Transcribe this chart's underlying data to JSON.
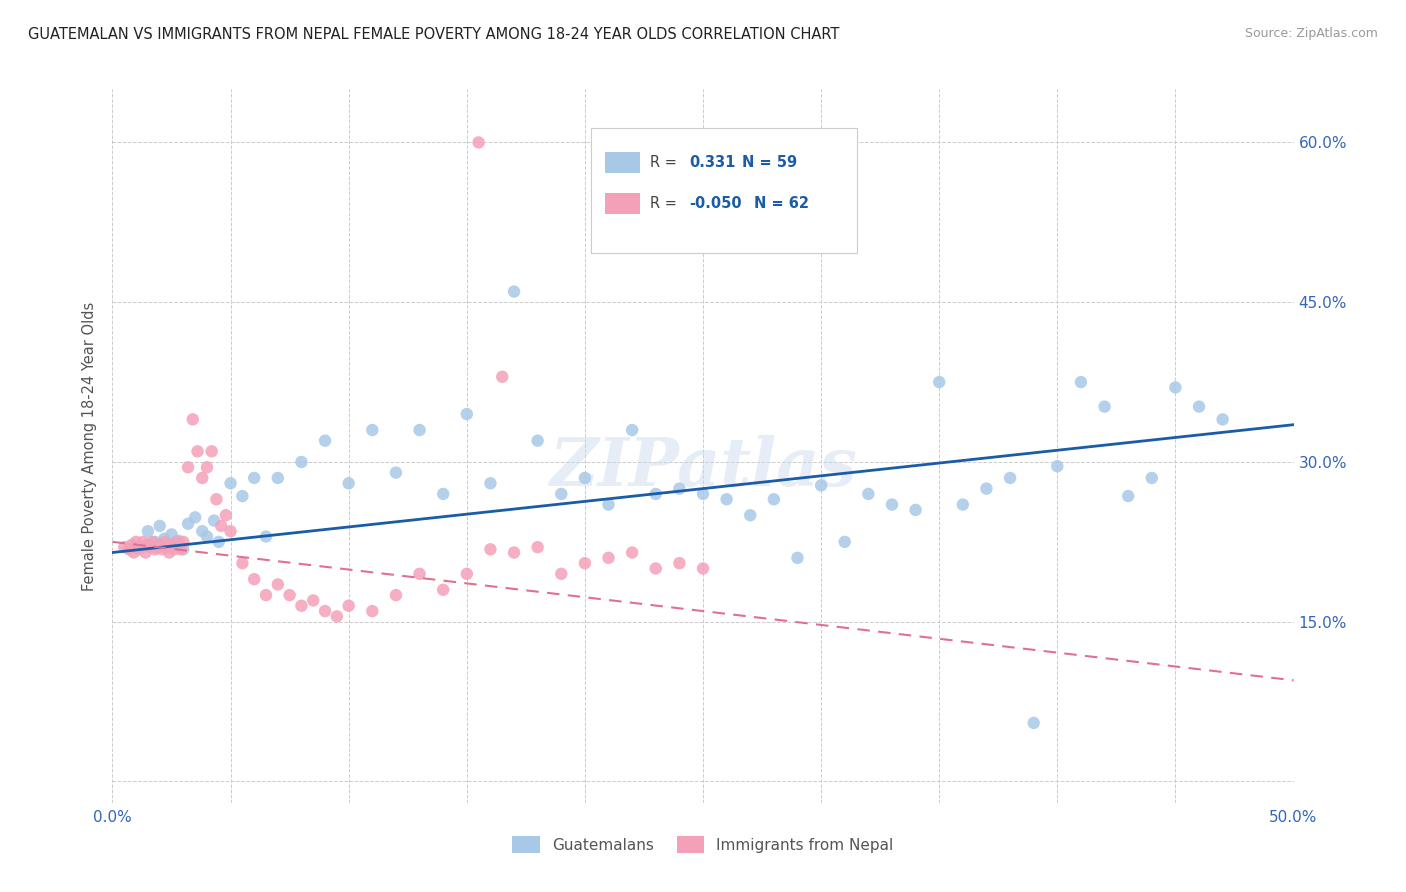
{
  "title": "GUATEMALAN VS IMMIGRANTS FROM NEPAL FEMALE POVERTY AMONG 18-24 YEAR OLDS CORRELATION CHART",
  "source": "Source: ZipAtlas.com",
  "ylabel": "Female Poverty Among 18-24 Year Olds",
  "xlim": [
    0.0,
    0.5
  ],
  "ylim": [
    -0.02,
    0.65
  ],
  "R_blue": 0.331,
  "N_blue": 59,
  "R_pink": -0.05,
  "N_pink": 62,
  "blue_color": "#a8c8e8",
  "pink_color": "#f4a0b8",
  "trend_blue_color": "#1a5ca8",
  "trend_pink_color": "#e07090",
  "watermark": "ZIPatlas",
  "legend_labels": [
    "Guatemalans",
    "Immigrants from Nepal"
  ],
  "blue_x": [
    0.01,
    0.015,
    0.018,
    0.02,
    0.022,
    0.025,
    0.028,
    0.03,
    0.032,
    0.035,
    0.038,
    0.04,
    0.043,
    0.045,
    0.05,
    0.055,
    0.06,
    0.065,
    0.07,
    0.08,
    0.09,
    0.1,
    0.11,
    0.12,
    0.13,
    0.14,
    0.15,
    0.16,
    0.17,
    0.18,
    0.19,
    0.2,
    0.21,
    0.22,
    0.23,
    0.24,
    0.25,
    0.26,
    0.27,
    0.28,
    0.29,
    0.3,
    0.31,
    0.32,
    0.33,
    0.34,
    0.35,
    0.36,
    0.37,
    0.38,
    0.39,
    0.4,
    0.41,
    0.42,
    0.43,
    0.44,
    0.45,
    0.46,
    0.47
  ],
  "blue_y": [
    0.22,
    0.235,
    0.225,
    0.24,
    0.228,
    0.232,
    0.226,
    0.218,
    0.242,
    0.248,
    0.235,
    0.23,
    0.245,
    0.225,
    0.28,
    0.268,
    0.285,
    0.23,
    0.285,
    0.3,
    0.32,
    0.28,
    0.33,
    0.29,
    0.33,
    0.27,
    0.345,
    0.28,
    0.46,
    0.32,
    0.27,
    0.285,
    0.26,
    0.33,
    0.27,
    0.275,
    0.27,
    0.265,
    0.25,
    0.265,
    0.21,
    0.278,
    0.225,
    0.27,
    0.26,
    0.255,
    0.375,
    0.26,
    0.275,
    0.285,
    0.055,
    0.296,
    0.375,
    0.352,
    0.268,
    0.285,
    0.37,
    0.352,
    0.34
  ],
  "pink_x": [
    0.005,
    0.007,
    0.008,
    0.009,
    0.01,
    0.011,
    0.012,
    0.013,
    0.014,
    0.015,
    0.016,
    0.017,
    0.018,
    0.019,
    0.02,
    0.021,
    0.022,
    0.023,
    0.024,
    0.025,
    0.026,
    0.027,
    0.028,
    0.029,
    0.03,
    0.032,
    0.034,
    0.036,
    0.038,
    0.04,
    0.042,
    0.044,
    0.046,
    0.048,
    0.05,
    0.055,
    0.06,
    0.065,
    0.07,
    0.075,
    0.08,
    0.085,
    0.09,
    0.095,
    0.1,
    0.11,
    0.12,
    0.13,
    0.14,
    0.15,
    0.16,
    0.17,
    0.18,
    0.19,
    0.2,
    0.21,
    0.22,
    0.23,
    0.24,
    0.25,
    0.155,
    0.165
  ],
  "pink_y": [
    0.22,
    0.218,
    0.222,
    0.215,
    0.225,
    0.218,
    0.22,
    0.225,
    0.215,
    0.222,
    0.22,
    0.225,
    0.218,
    0.22,
    0.222,
    0.218,
    0.225,
    0.22,
    0.215,
    0.222,
    0.218,
    0.225,
    0.22,
    0.218,
    0.225,
    0.295,
    0.34,
    0.31,
    0.285,
    0.295,
    0.31,
    0.265,
    0.24,
    0.25,
    0.235,
    0.205,
    0.19,
    0.175,
    0.185,
    0.175,
    0.165,
    0.17,
    0.16,
    0.155,
    0.165,
    0.16,
    0.175,
    0.195,
    0.18,
    0.195,
    0.218,
    0.215,
    0.22,
    0.195,
    0.205,
    0.21,
    0.215,
    0.2,
    0.205,
    0.2,
    0.6,
    0.38
  ],
  "blue_trend": [
    0.215,
    0.335
  ],
  "pink_trend": [
    0.225,
    0.095
  ],
  "xtick_positions": [
    0.0,
    0.05,
    0.1,
    0.15,
    0.2,
    0.25,
    0.3,
    0.35,
    0.4,
    0.45,
    0.5
  ],
  "xtick_labels": [
    "0.0%",
    "",
    "",
    "",
    "",
    "",
    "",
    "",
    "",
    "",
    "50.0%"
  ],
  "ytick_positions": [
    0.0,
    0.15,
    0.3,
    0.45,
    0.6
  ],
  "ytick_labels": [
    "",
    "15.0%",
    "30.0%",
    "45.0%",
    "60.0%"
  ]
}
